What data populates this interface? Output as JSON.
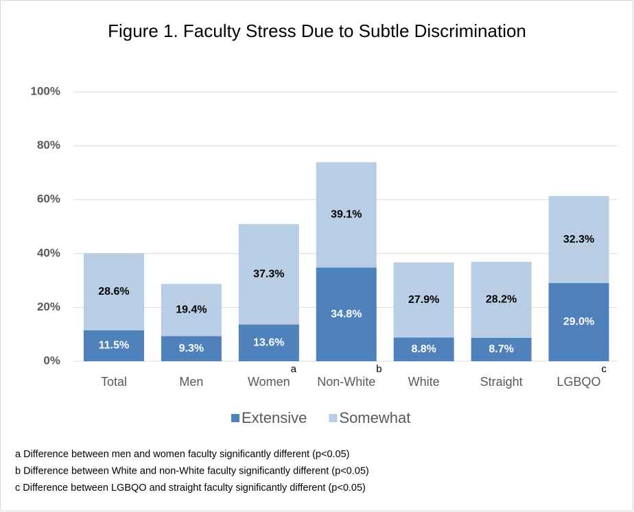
{
  "chart_data": {
    "type": "stacked_bar",
    "title": "Figure 1. Faculty Stress Due to Subtle Discrimination",
    "categories": [
      "Total",
      "Men",
      "Women",
      "Non-White",
      "White",
      "Straight",
      "LGBQO"
    ],
    "category_superscripts": [
      null,
      null,
      "a",
      "b",
      null,
      null,
      "c"
    ],
    "series": [
      {
        "name": "Extensive",
        "color": "#4f81bd",
        "values": [
          11.5,
          9.3,
          13.6,
          34.8,
          8.8,
          8.7,
          29.0
        ],
        "value_labels": [
          "11.5%",
          "9.3%",
          "13.6%",
          "34.8%",
          "8.8%",
          "8.7%",
          "29.0%"
        ]
      },
      {
        "name": "Somewhat",
        "color": "#b9cde5",
        "values": [
          28.6,
          19.4,
          37.3,
          39.1,
          27.9,
          28.2,
          32.3
        ],
        "value_labels": [
          "28.6%",
          "19.4%",
          "37.3%",
          "39.1%",
          "27.9%",
          "28.2%",
          "32.3%"
        ]
      }
    ],
    "ylim": [
      0,
      100
    ],
    "yticks": [
      {
        "value": 0,
        "label": "0%"
      },
      {
        "value": 20,
        "label": "20%"
      },
      {
        "value": 40,
        "label": "40%"
      },
      {
        "value": 60,
        "label": "60%"
      },
      {
        "value": 80,
        "label": "80%"
      },
      {
        "value": 100,
        "label": "100%"
      }
    ],
    "grid": true,
    "legend": "bottom",
    "footnotes": [
      "a Difference between men and women faculty significantly different (p<0.05)",
      "b Difference between White and non-White faculty significantly different (p<0.05)",
      "c Difference between LGBQO and straight faculty significantly different (p<0.05)"
    ]
  }
}
